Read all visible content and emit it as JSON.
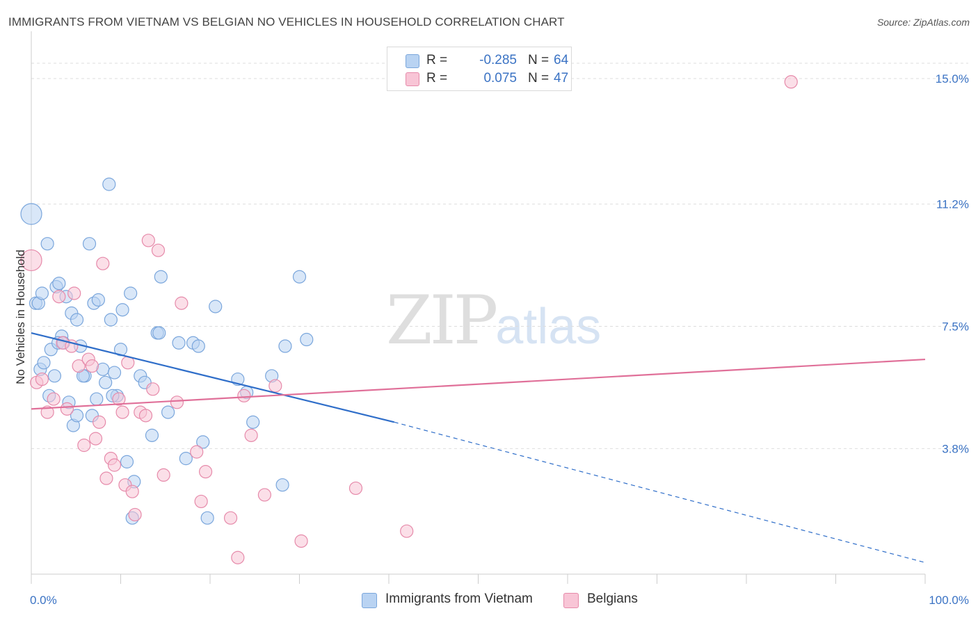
{
  "title": "IMMIGRANTS FROM VIETNAM VS BELGIAN NO VEHICLES IN HOUSEHOLD CORRELATION CHART",
  "source": "Source: ZipAtlas.com",
  "watermark": {
    "zip": "ZIP",
    "atlas": "atlas"
  },
  "colors": {
    "vietnam_fill": "#b9d3f2",
    "vietnam_stroke": "#7aa6dc",
    "vietnam_line": "#2f6ec9",
    "belgian_fill": "#f8c5d6",
    "belgian_stroke": "#e68aaa",
    "belgian_line": "#e07099",
    "tick_label": "#3b73c4",
    "grid": "#dddddd"
  },
  "legend": {
    "rows": [
      {
        "r_label": "R = ",
        "r_value": "-0.285",
        "n_label": "N = ",
        "n_value": "64"
      },
      {
        "r_label": "R = ",
        "r_value": "0.075",
        "n_label": "N = ",
        "n_value": "47"
      }
    ]
  },
  "chart_data": {
    "type": "scatter",
    "title": "IMMIGRANTS FROM VIETNAM VS BELGIAN NO VEHICLES IN HOUSEHOLD CORRELATION CHART",
    "xlabel": "",
    "ylabel": "No Vehicles in Household",
    "xlim": [
      0,
      100
    ],
    "ylim": [
      0,
      15.8
    ],
    "x_tick_labels": [
      "0.0%",
      "100.0%"
    ],
    "y_ticks": [
      3.8,
      7.5,
      11.2,
      15.0
    ],
    "y_tick_labels": [
      "3.8%",
      "7.5%",
      "11.2%",
      "15.0%"
    ],
    "grid": true,
    "legend_position": "top-center",
    "series": [
      {
        "name": "Immigrants from Vietnam",
        "points": [
          [
            0.0,
            10.9
          ],
          [
            0.5,
            8.2
          ],
          [
            0.8,
            8.2
          ],
          [
            1.2,
            8.5
          ],
          [
            1.8,
            10.0
          ],
          [
            2.2,
            6.8
          ],
          [
            2.8,
            8.7
          ],
          [
            3.1,
            8.8
          ],
          [
            3.4,
            7.2
          ],
          [
            3.9,
            8.4
          ],
          [
            4.5,
            7.9
          ],
          [
            5.1,
            7.7
          ],
          [
            5.5,
            6.9
          ],
          [
            6.0,
            6.0
          ],
          [
            6.5,
            10.0
          ],
          [
            7.0,
            8.2
          ],
          [
            7.5,
            8.3
          ],
          [
            8.0,
            6.2
          ],
          [
            8.3,
            5.8
          ],
          [
            8.7,
            11.8
          ],
          [
            8.9,
            7.7
          ],
          [
            9.3,
            6.1
          ],
          [
            9.6,
            5.4
          ],
          [
            10.0,
            6.8
          ],
          [
            10.2,
            8.0
          ],
          [
            10.7,
            3.4
          ],
          [
            11.1,
            8.5
          ],
          [
            11.5,
            2.8
          ],
          [
            12.2,
            6.0
          ],
          [
            12.7,
            5.8
          ],
          [
            13.5,
            4.2
          ],
          [
            14.1,
            7.3
          ],
          [
            14.3,
            7.3
          ],
          [
            14.5,
            9.0
          ],
          [
            15.3,
            4.9
          ],
          [
            16.5,
            7.0
          ],
          [
            17.3,
            3.5
          ],
          [
            18.1,
            7.0
          ],
          [
            18.7,
            6.9
          ],
          [
            19.2,
            4.0
          ],
          [
            19.7,
            1.7
          ],
          [
            20.6,
            8.1
          ],
          [
            23.1,
            5.9
          ],
          [
            24.1,
            5.5
          ],
          [
            24.8,
            4.6
          ],
          [
            26.9,
            6.0
          ],
          [
            28.1,
            2.7
          ],
          [
            28.4,
            6.9
          ],
          [
            30.0,
            9.0
          ],
          [
            30.8,
            7.1
          ],
          [
            1.0,
            6.2
          ],
          [
            1.4,
            6.4
          ],
          [
            2.0,
            5.4
          ],
          [
            2.6,
            6.0
          ],
          [
            3.0,
            7.0
          ],
          [
            4.2,
            5.2
          ],
          [
            4.7,
            4.5
          ],
          [
            5.1,
            4.8
          ],
          [
            5.8,
            6.0
          ],
          [
            6.8,
            4.8
          ],
          [
            7.3,
            5.3
          ],
          [
            9.1,
            5.4
          ],
          [
            11.3,
            1.7
          ],
          [
            3.6,
            7.0
          ]
        ],
        "trend": {
          "x": [
            0,
            40.6
          ],
          "y": [
            7.3,
            4.6
          ]
        },
        "trend_extension": {
          "x": [
            40.6,
            100
          ],
          "y": [
            4.6,
            0.35
          ]
        }
      },
      {
        "name": "Belgians",
        "points": [
          [
            0.0,
            9.5
          ],
          [
            0.6,
            5.8
          ],
          [
            1.2,
            5.9
          ],
          [
            1.8,
            4.9
          ],
          [
            2.5,
            5.3
          ],
          [
            3.1,
            8.4
          ],
          [
            3.5,
            7.0
          ],
          [
            4.0,
            5.0
          ],
          [
            4.5,
            6.9
          ],
          [
            4.8,
            8.5
          ],
          [
            5.3,
            6.3
          ],
          [
            5.9,
            3.9
          ],
          [
            6.4,
            6.5
          ],
          [
            6.8,
            6.3
          ],
          [
            7.2,
            4.1
          ],
          [
            7.6,
            4.6
          ],
          [
            8.0,
            9.4
          ],
          [
            8.4,
            2.9
          ],
          [
            8.9,
            3.5
          ],
          [
            9.3,
            3.3
          ],
          [
            9.8,
            5.3
          ],
          [
            10.2,
            4.9
          ],
          [
            10.5,
            2.7
          ],
          [
            10.8,
            6.4
          ],
          [
            11.3,
            2.5
          ],
          [
            11.6,
            1.8
          ],
          [
            12.2,
            4.9
          ],
          [
            12.8,
            4.8
          ],
          [
            13.1,
            10.1
          ],
          [
            13.6,
            5.6
          ],
          [
            14.2,
            9.8
          ],
          [
            14.8,
            3.0
          ],
          [
            16.3,
            5.2
          ],
          [
            16.8,
            8.2
          ],
          [
            18.5,
            3.7
          ],
          [
            19.0,
            2.2
          ],
          [
            19.5,
            3.1
          ],
          [
            22.3,
            1.7
          ],
          [
            23.1,
            0.5
          ],
          [
            23.8,
            5.4
          ],
          [
            24.6,
            4.2
          ],
          [
            26.1,
            2.4
          ],
          [
            27.3,
            5.7
          ],
          [
            30.2,
            1.0
          ],
          [
            36.3,
            2.6
          ],
          [
            42.0,
            1.3
          ],
          [
            85.0,
            14.9
          ]
        ],
        "trend": {
          "x": [
            0,
            100
          ],
          "y": [
            5.0,
            6.5
          ]
        }
      }
    ]
  },
  "bottom_legend": [
    "Immigrants from Vietnam",
    "Belgians"
  ]
}
